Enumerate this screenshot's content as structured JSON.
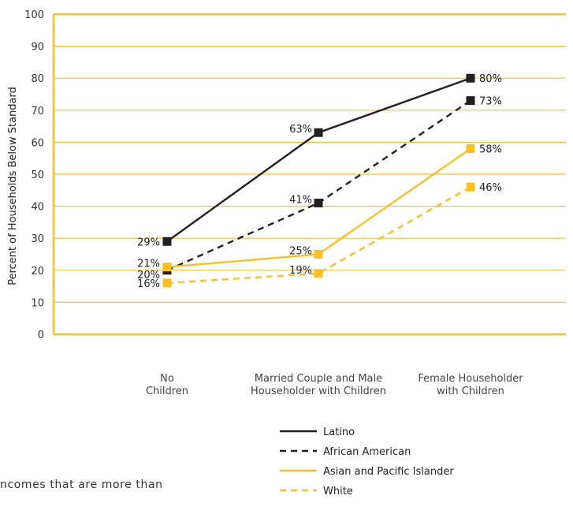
{
  "chart_data": {
    "type": "line",
    "ylabel": "Percent of Households Below Standard",
    "ylim": [
      0,
      100
    ],
    "yticks": [
      "0",
      "10",
      "20",
      "30",
      "40",
      "50",
      "60",
      "70",
      "80",
      "90",
      "100"
    ],
    "categories": [
      [
        "No",
        "Children"
      ],
      [
        "Married Couple and Male",
        "Householder with Children"
      ],
      [
        "Female Householder",
        "with Children"
      ]
    ],
    "series": [
      {
        "name": "Latino",
        "values": [
          29,
          63,
          80
        ],
        "labels": [
          "29%",
          "63%",
          "80%"
        ],
        "color": "#231f20",
        "dashed": false
      },
      {
        "name": "African American",
        "values": [
          20,
          41,
          73
        ],
        "labels": [
          "20%",
          "41%",
          "73%"
        ],
        "color": "#231f20",
        "dashed": true
      },
      {
        "name": "Asian and Pacific Islander",
        "values": [
          21,
          25,
          58
        ],
        "labels": [
          "21%",
          "25%",
          "58%"
        ],
        "color": "#fcc020",
        "dashed": false
      },
      {
        "name": "White",
        "values": [
          16,
          19,
          46
        ],
        "labels": [
          "16%",
          "19%",
          "46%"
        ],
        "color": "#fcc020",
        "dashed": true
      }
    ],
    "grid": true,
    "grid_color": "#fcc020",
    "legend_position": "bottom-right"
  },
  "body_text": "ncomes that are more than"
}
